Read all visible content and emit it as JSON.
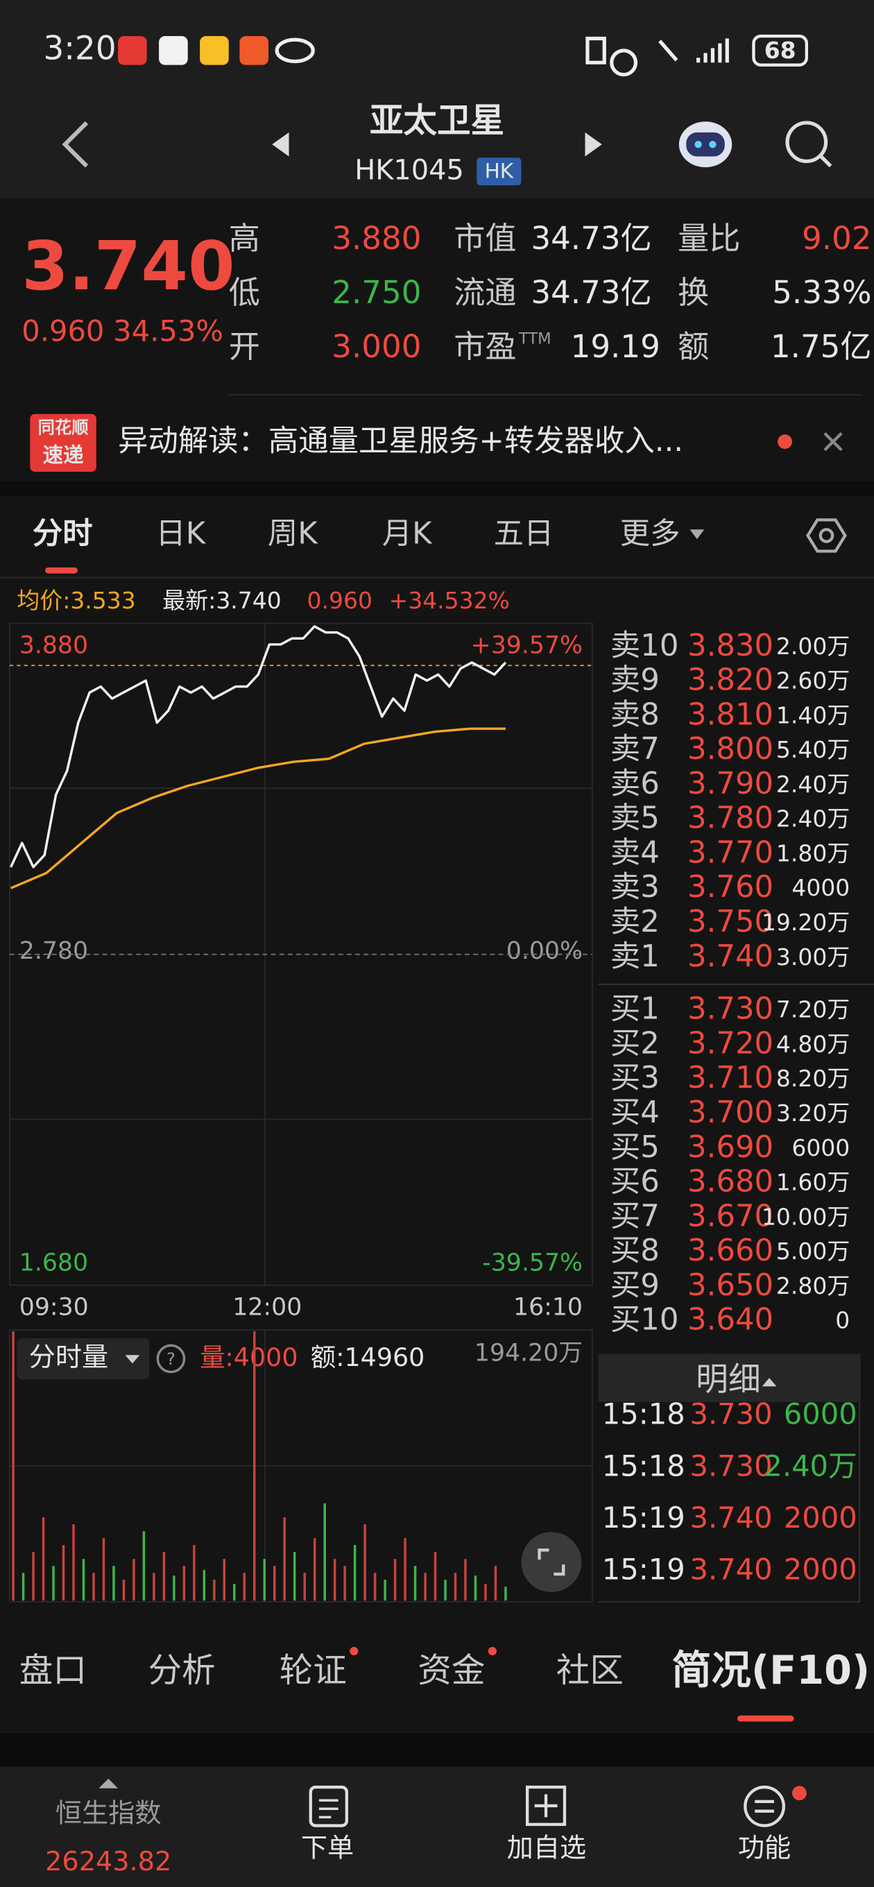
{
  "status_bar": {
    "time": "3:20",
    "battery": "68"
  },
  "header": {
    "title": "亚太卫星",
    "code": "HK1045",
    "market": "HK"
  },
  "quote": {
    "price": "3.740",
    "change": "0.960",
    "change_pct": "34.53%",
    "stats": [
      [
        {
          "label": "高",
          "value": "3.880"
        },
        {
          "label": "市值",
          "value": "34.73亿"
        },
        {
          "label": "量比",
          "value": "9.02"
        }
      ],
      [
        {
          "label": "低",
          "value": "2.750"
        },
        {
          "label": "流通",
          "value": "34.73亿"
        },
        {
          "label": "换",
          "value": "5.33%"
        }
      ],
      [
        {
          "label": "开",
          "value": "3.000"
        },
        {
          "label": "市盈",
          "sup": "TTM",
          "value": "19.19"
        },
        {
          "label": "额",
          "value": "1.75亿"
        }
      ]
    ]
  },
  "banner": {
    "badge_top": "同花顺",
    "badge_bottom": "速递",
    "text": "异动解读：高通量卫星服务+转发器收入..."
  },
  "tabs": [
    "分时",
    "日K",
    "周K",
    "月K",
    "五日",
    "更多"
  ],
  "info": {
    "avg": "均价:3.533",
    "latest": "最新:3.740",
    "change": "0.960",
    "change_pct": "+34.532%"
  },
  "intraday": {
    "ylim": [
      1.68,
      3.88
    ],
    "yticks": [
      {
        "value": 3.88,
        "label": "3.880"
      },
      {
        "value": 2.78,
        "label": "2.780"
      },
      {
        "value": 1.68,
        "label": "1.680"
      }
    ],
    "pct_labels": [
      "+39.57%",
      "0.00%",
      "-39.57%"
    ],
    "latest": 3.74,
    "xticks": [
      "09:30",
      "12:00",
      "16:10"
    ],
    "price": [
      3.07,
      3.15,
      3.07,
      3.11,
      3.31,
      3.39,
      3.55,
      3.65,
      3.67,
      3.63,
      3.65,
      3.67,
      3.69,
      3.55,
      3.59,
      3.67,
      3.65,
      3.67,
      3.63,
      3.65,
      3.67,
      3.67,
      3.71,
      3.81,
      3.81,
      3.83,
      3.83,
      3.87,
      3.85,
      3.85,
      3.83,
      3.77,
      3.67,
      3.57,
      3.63,
      3.59,
      3.71,
      3.69,
      3.71,
      3.67,
      3.73,
      3.75,
      3.73,
      3.71,
      3.75
    ],
    "avg": [
      3.0,
      3.05,
      3.15,
      3.25,
      3.3,
      3.34,
      3.37,
      3.4,
      3.42,
      3.43,
      3.48,
      3.5,
      3.52,
      3.53,
      3.53
    ]
  },
  "volume": {
    "selector": "分时量",
    "vol": "量:4000",
    "amount": "额:14960",
    "max_label": "194.20万",
    "ylim": [
      0,
      194.2
    ],
    "values": [
      194,
      20,
      35,
      60,
      25,
      40,
      55,
      30,
      20,
      45,
      25,
      15,
      30,
      50,
      20,
      35,
      18,
      25,
      40,
      22,
      15,
      30,
      12,
      20,
      194,
      30,
      25,
      60,
      35,
      20,
      45,
      70,
      30,
      25,
      40,
      55,
      20,
      15,
      30,
      45,
      25,
      20,
      35,
      15,
      20,
      30,
      18,
      12,
      25,
      10
    ]
  },
  "order_book": {
    "asks": [
      {
        "label": "卖10",
        "price": "3.830",
        "volume": "2.00万"
      },
      {
        "label": "卖9",
        "price": "3.820",
        "volume": "2.60万"
      },
      {
        "label": "卖8",
        "price": "3.810",
        "volume": "1.40万"
      },
      {
        "label": "卖7",
        "price": "3.800",
        "volume": "5.40万"
      },
      {
        "label": "卖6",
        "price": "3.790",
        "volume": "2.40万"
      },
      {
        "label": "卖5",
        "price": "3.780",
        "volume": "2.40万"
      },
      {
        "label": "卖4",
        "price": "3.770",
        "volume": "1.80万"
      },
      {
        "label": "卖3",
        "price": "3.760",
        "volume": "4000"
      },
      {
        "label": "卖2",
        "price": "3.750",
        "volume": "19.20万"
      },
      {
        "label": "卖1",
        "price": "3.740",
        "volume": "3.00万"
      }
    ],
    "bids": [
      {
        "label": "买1",
        "price": "3.730",
        "volume": "7.20万"
      },
      {
        "label": "买2",
        "price": "3.720",
        "volume": "4.80万"
      },
      {
        "label": "买3",
        "price": "3.710",
        "volume": "8.20万"
      },
      {
        "label": "买4",
        "price": "3.700",
        "volume": "3.20万"
      },
      {
        "label": "买5",
        "price": "3.690",
        "volume": "6000"
      },
      {
        "label": "买6",
        "price": "3.680",
        "volume": "1.60万"
      },
      {
        "label": "买7",
        "price": "3.670",
        "volume": "10.00万"
      },
      {
        "label": "买8",
        "price": "3.660",
        "volume": "5.00万"
      },
      {
        "label": "买9",
        "price": "3.650",
        "volume": "2.80万"
      },
      {
        "label": "买10",
        "price": "3.640",
        "volume": "0"
      }
    ]
  },
  "trades": {
    "title": "明细",
    "rows": [
      {
        "time": "15:18",
        "price": "3.730",
        "volume": "6000"
      },
      {
        "time": "15:18",
        "price": "3.730",
        "volume": "2.40万"
      },
      {
        "time": "15:19",
        "price": "3.740",
        "volume": "2000"
      },
      {
        "time": "15:19",
        "price": "3.740",
        "volume": "2000"
      }
    ]
  },
  "sub_tabs": [
    "盘口",
    "分析",
    "轮证",
    "资金",
    "社区",
    "简况(F10)"
  ],
  "nav": {
    "index_name": "恒生指数",
    "index_value": "26243.82",
    "items": [
      "下单",
      "加自选",
      "功能"
    ]
  }
}
